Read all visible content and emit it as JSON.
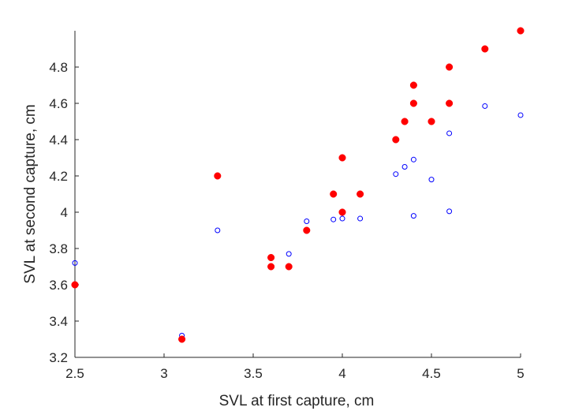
{
  "chart_data": {
    "type": "scatter",
    "xlabel": "SVL at first capture, cm",
    "ylabel": "SVL at second capture, cm",
    "xlim": [
      2.5,
      5.0
    ],
    "ylim": [
      3.2,
      5.0
    ],
    "xticks": [
      2.5,
      3,
      3.5,
      4,
      4.5,
      5
    ],
    "xtick_labels": [
      "2.5",
      "3",
      "3.5",
      "4",
      "4.5",
      "5"
    ],
    "yticks": [
      3.2,
      3.4,
      3.6,
      3.8,
      4.0,
      4.2,
      4.4,
      4.6,
      4.8
    ],
    "ytick_labels": [
      "3.2",
      "3.4",
      "3.6",
      "3.8",
      "4",
      "4.2",
      "4.4",
      "4.6",
      "4.8"
    ],
    "grid": false,
    "series": [
      {
        "marker": "filled-circle",
        "color": "#ff0000",
        "points": [
          [
            2.5,
            3.6
          ],
          [
            3.1,
            3.3
          ],
          [
            3.3,
            4.2
          ],
          [
            3.6,
            3.75
          ],
          [
            3.6,
            3.7
          ],
          [
            3.7,
            3.7
          ],
          [
            3.8,
            3.9
          ],
          [
            3.95,
            4.1
          ],
          [
            4.0,
            4.3
          ],
          [
            4.0,
            4.0
          ],
          [
            4.1,
            4.1
          ],
          [
            4.3,
            4.4
          ],
          [
            4.35,
            4.5
          ],
          [
            4.4,
            4.7
          ],
          [
            4.4,
            4.6
          ],
          [
            4.5,
            4.5
          ],
          [
            4.6,
            4.8
          ],
          [
            4.6,
            4.6
          ],
          [
            4.8,
            4.9
          ],
          [
            5.0,
            5.0
          ]
        ]
      },
      {
        "marker": "open-circle",
        "color": "#0000ff",
        "points": [
          [
            2.5,
            3.72
          ],
          [
            3.1,
            3.32
          ],
          [
            3.3,
            3.9
          ],
          [
            3.7,
            3.77
          ],
          [
            3.8,
            3.95
          ],
          [
            3.95,
            3.96
          ],
          [
            4.0,
            3.965
          ],
          [
            4.1,
            3.965
          ],
          [
            4.3,
            4.21
          ],
          [
            4.35,
            4.25
          ],
          [
            4.4,
            4.29
          ],
          [
            4.4,
            3.98
          ],
          [
            4.5,
            4.18
          ],
          [
            4.6,
            4.435
          ],
          [
            4.6,
            4.005
          ],
          [
            4.8,
            4.585
          ],
          [
            5.0,
            4.535
          ]
        ]
      }
    ]
  }
}
